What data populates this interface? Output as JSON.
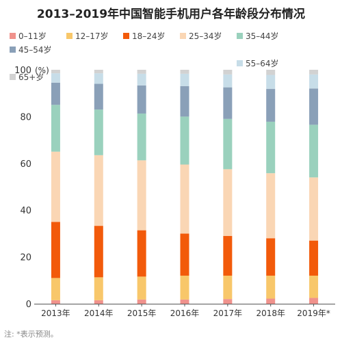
{
  "title": "2013–2019年中国智能手机用户各年龄段分布情况",
  "note": "注: *表示预测。",
  "colors": {
    "0-11": "#f0928c",
    "12-17": "#f8c76a",
    "18-24": "#f25a0a",
    "25-34": "#fad6b4",
    "35-44": "#9ad1bd",
    "45-54": "#8aa0b8",
    "55-64": "#c7dde8",
    "65+": "#d2d2d2"
  },
  "chart_data": {
    "type": "bar",
    "stacked": true,
    "title": "2013–2019年中国智能手机用户各年龄段分布情况",
    "ylabel": "",
    "y_unit": "(%)",
    "ylim": [
      0,
      100
    ],
    "yticks": [
      0,
      20,
      40,
      60,
      80,
      100
    ],
    "grid": false,
    "legend_position": "top",
    "categories": [
      "2013年",
      "2014年",
      "2015年",
      "2016年",
      "2017年",
      "2018年",
      "2019年*"
    ],
    "series": [
      {
        "name": "0–11岁",
        "key": "0-11",
        "values": [
          1.5,
          1.5,
          1.8,
          1.8,
          2.0,
          2.2,
          2.5
        ]
      },
      {
        "name": "12–17岁",
        "key": "12-17",
        "values": [
          9.5,
          9.8,
          9.8,
          10.2,
          10.0,
          9.8,
          9.5
        ]
      },
      {
        "name": "18–24岁",
        "key": "18-24",
        "values": [
          24.0,
          22.0,
          19.8,
          18.0,
          17.0,
          16.0,
          15.0
        ]
      },
      {
        "name": "25–34岁",
        "key": "25-34",
        "values": [
          30.0,
          30.2,
          29.9,
          29.5,
          28.5,
          27.8,
          27.0
        ]
      },
      {
        "name": "35–44岁",
        "key": "35-44",
        "values": [
          20.0,
          19.5,
          20.0,
          20.5,
          21.5,
          22.0,
          22.5
        ]
      },
      {
        "name": "45–54岁",
        "key": "45-54",
        "values": [
          9.5,
          11.0,
          12.0,
          13.0,
          13.5,
          14.0,
          15.5
        ]
      },
      {
        "name": "55–64岁",
        "key": "55-64",
        "values": [
          4.0,
          4.5,
          5.0,
          5.3,
          5.5,
          6.0,
          6.0
        ]
      },
      {
        "name": "65+岁",
        "key": "65+",
        "values": [
          1.5,
          1.5,
          1.7,
          1.7,
          2.0,
          2.2,
          2.0
        ]
      }
    ]
  }
}
